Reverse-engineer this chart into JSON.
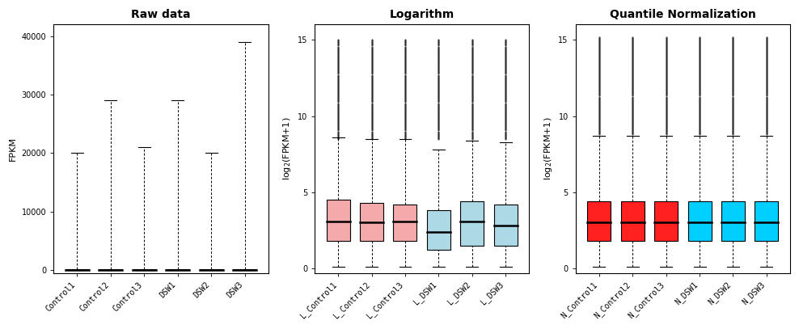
{
  "panel1": {
    "title": "Raw data",
    "ylabel": "FPKM",
    "categories": [
      "Control1",
      "Control2",
      "Control3",
      "DSW1",
      "DSW2",
      "DSW3"
    ],
    "ylim": [
      -500,
      42000
    ],
    "yticks": [
      0,
      10000,
      20000,
      30000,
      40000
    ],
    "boxes": [
      {
        "q1": 0,
        "median": 0,
        "q3": 100,
        "whislo": 0,
        "whishi": 20000
      },
      {
        "q1": 0,
        "median": 0,
        "q3": 100,
        "whislo": 0,
        "whishi": 29000
      },
      {
        "q1": 0,
        "median": 0,
        "q3": 100,
        "whislo": 0,
        "whishi": 21000
      },
      {
        "q1": 0,
        "median": 0,
        "q3": 100,
        "whislo": 0,
        "whishi": 29000
      },
      {
        "q1": 0,
        "median": 0,
        "q3": 100,
        "whislo": 0,
        "whishi": 20000
      },
      {
        "q1": 0,
        "median": 0,
        "q3": 100,
        "whislo": 0,
        "whishi": 39000
      }
    ]
  },
  "panel2": {
    "title": "Logarithm",
    "ylabel": "log2(FPKM+1)",
    "categories": [
      "L_Control1",
      "L_Control2",
      "L_Control3",
      "L_DSW1",
      "L_DSW2",
      "L_DSW3"
    ],
    "colors": [
      "#F4AAAA",
      "#F4AAAA",
      "#F4AAAA",
      "#ADD8E6",
      "#ADD8E6",
      "#ADD8E6"
    ],
    "ylim": [
      -0.3,
      16
    ],
    "yticks": [
      0,
      5,
      10,
      15
    ],
    "boxes": [
      {
        "q1": 1.8,
        "median": 3.1,
        "q3": 4.5,
        "whislo": 0.1,
        "whishi": 8.6
      },
      {
        "q1": 1.8,
        "median": 3.0,
        "q3": 4.3,
        "whislo": 0.1,
        "whishi": 8.5
      },
      {
        "q1": 1.8,
        "median": 3.1,
        "q3": 4.2,
        "whislo": 0.1,
        "whishi": 8.5
      },
      {
        "q1": 1.2,
        "median": 2.4,
        "q3": 3.8,
        "whislo": 0.1,
        "whishi": 7.8
      },
      {
        "q1": 1.5,
        "median": 3.1,
        "q3": 4.4,
        "whislo": 0.1,
        "whishi": 8.4
      },
      {
        "q1": 1.5,
        "median": 2.8,
        "q3": 4.2,
        "whislo": 0.1,
        "whishi": 8.3
      }
    ],
    "flier_range": [
      8.5,
      15.0
    ],
    "flier_density": 120
  },
  "panel3": {
    "title": "Quantile Normalization",
    "ylabel": "log2(FPKM+1)",
    "categories": [
      "N_Control1",
      "N_Control2",
      "N_Control3",
      "N_DSW1",
      "N_DSW2",
      "N_DSW3"
    ],
    "colors": [
      "#FF2020",
      "#FF2020",
      "#FF2020",
      "#00CFFF",
      "#00CFFF",
      "#00CFFF"
    ],
    "ylim": [
      -0.3,
      16
    ],
    "yticks": [
      0,
      5,
      10,
      15
    ],
    "boxes": [
      {
        "q1": 1.8,
        "median": 3.0,
        "q3": 4.4,
        "whislo": 0.1,
        "whishi": 8.7
      },
      {
        "q1": 1.8,
        "median": 3.0,
        "q3": 4.4,
        "whislo": 0.1,
        "whishi": 8.7
      },
      {
        "q1": 1.8,
        "median": 3.0,
        "q3": 4.4,
        "whislo": 0.1,
        "whishi": 8.7
      },
      {
        "q1": 1.8,
        "median": 3.0,
        "q3": 4.4,
        "whislo": 0.1,
        "whishi": 8.7
      },
      {
        "q1": 1.8,
        "median": 3.0,
        "q3": 4.4,
        "whislo": 0.1,
        "whishi": 8.7
      },
      {
        "q1": 1.8,
        "median": 3.0,
        "q3": 4.4,
        "whislo": 0.1,
        "whishi": 8.7
      }
    ],
    "flier_range": [
      8.8,
      15.2
    ],
    "flier_density": 120
  },
  "title_fontsize": 10,
  "label_fontsize": 8,
  "tick_fontsize": 7,
  "bg_color": "#ffffff"
}
